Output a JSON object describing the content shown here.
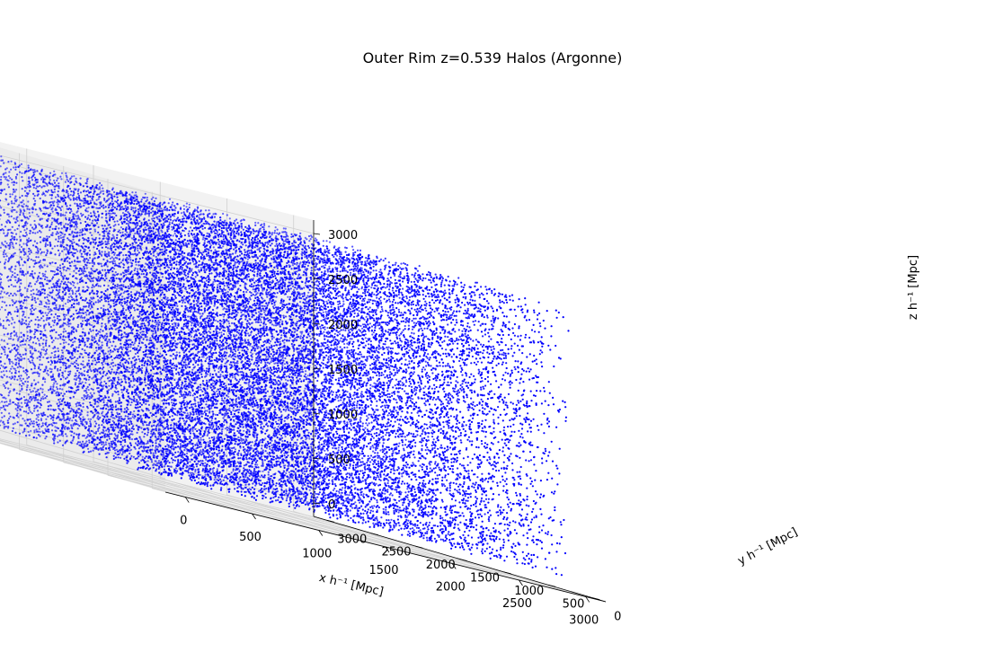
{
  "chart_data": {
    "type": "scatter",
    "projection": "3d",
    "title": "Outer Rim z=0.539 Halos (Argonne)",
    "xlabel": "x h⁻¹ [Mpc]",
    "ylabel": "y h⁻¹ [Mpc]",
    "zlabel": "z h⁻¹ [Mpc]",
    "xlim": [
      -150,
      3150
    ],
    "ylim": [
      -150,
      3150
    ],
    "zlim": [
      -150,
      3150
    ],
    "xticks": [
      "0",
      "500",
      "1000",
      "1500",
      "2000",
      "2500",
      "3000"
    ],
    "yticks": [
      "0",
      "500",
      "1000",
      "1500",
      "2000",
      "2500",
      "3000"
    ],
    "zticks": [
      "0",
      "500",
      "1000",
      "1500",
      "2000",
      "2500",
      "3000"
    ],
    "grid": true,
    "legend": "none",
    "series": [
      {
        "marker_color": "#0000ff",
        "distribution": "uniform in cube 0–3000 per axis",
        "approx_point_count": 30000
      }
    ]
  }
}
